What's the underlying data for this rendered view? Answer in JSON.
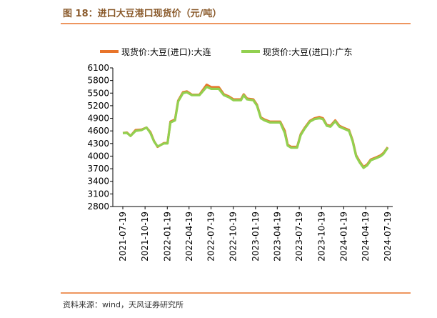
{
  "title": "图 18：进口大豆港口现货价（元/吨）",
  "source": "资料来源：wind，天风证券研究所",
  "chart_data": {
    "type": "line",
    "x": [
      "2021-07-19",
      "2021-08-05",
      "2021-08-20",
      "2021-09-10",
      "2021-10-05",
      "2021-10-25",
      "2021-11-10",
      "2021-11-25",
      "2021-12-10",
      "2022-01-05",
      "2022-01-20",
      "2022-02-01",
      "2022-02-20",
      "2022-03-05",
      "2022-03-25",
      "2022-04-10",
      "2022-05-01",
      "2022-06-01",
      "2022-07-01",
      "2022-07-20",
      "2022-08-20",
      "2022-09-10",
      "2022-10-01",
      "2022-10-20",
      "2022-11-20",
      "2022-12-01",
      "2022-12-15",
      "2023-01-10",
      "2023-01-25",
      "2023-02-10",
      "2023-02-25",
      "2023-03-20",
      "2023-05-01",
      "2023-05-20",
      "2023-06-01",
      "2023-06-15",
      "2023-07-10",
      "2023-07-25",
      "2023-08-10",
      "2023-09-01",
      "2023-09-20",
      "2023-10-10",
      "2023-10-25",
      "2023-11-10",
      "2023-11-25",
      "2023-12-15",
      "2024-01-01",
      "2024-01-20",
      "2024-02-10",
      "2024-02-25",
      "2024-03-10",
      "2024-03-25",
      "2024-04-10",
      "2024-04-25",
      "2024-05-10",
      "2024-06-01",
      "2024-06-20",
      "2024-07-01",
      "2024-07-19"
    ],
    "series": [
      {
        "name": "现货价:大豆(进口):大连",
        "color": "#e8742a",
        "values": [
          4550,
          4560,
          4480,
          4620,
          4630,
          4680,
          4570,
          4360,
          4220,
          4310,
          4310,
          4820,
          4870,
          5320,
          5520,
          5540,
          5460,
          5460,
          5700,
          5640,
          5640,
          5470,
          5420,
          5350,
          5350,
          5470,
          5370,
          5350,
          5220,
          4920,
          4870,
          4820,
          4820,
          4600,
          4270,
          4220,
          4220,
          4520,
          4670,
          4840,
          4900,
          4930,
          4900,
          4740,
          4720,
          4850,
          4720,
          4670,
          4620,
          4370,
          4020,
          3870,
          3740,
          3800,
          3920,
          3970,
          4020,
          4070,
          4210
        ]
      },
      {
        "name": "现货价:大豆(进口):广东",
        "color": "#92d050",
        "values": [
          4550,
          4550,
          4480,
          4600,
          4620,
          4680,
          4550,
          4350,
          4230,
          4300,
          4300,
          4800,
          4850,
          5300,
          5500,
          5520,
          5450,
          5450,
          5650,
          5600,
          5600,
          5450,
          5400,
          5330,
          5330,
          5450,
          5350,
          5330,
          5200,
          4900,
          4850,
          4800,
          4800,
          4550,
          4250,
          4200,
          4200,
          4500,
          4650,
          4820,
          4880,
          4900,
          4880,
          4720,
          4700,
          4830,
          4700,
          4650,
          4600,
          4350,
          4000,
          3850,
          3720,
          3780,
          3900,
          3950,
          4000,
          4050,
          4200
        ]
      }
    ],
    "xlim": [
      "2021-07-19",
      "2024-07-19"
    ],
    "xticks": [
      "2021-07-19",
      "2021-10-19",
      "2022-01-19",
      "2022-04-19",
      "2022-07-19",
      "2022-10-19",
      "2023-01-19",
      "2023-04-19",
      "2023-07-19",
      "2023-10-19",
      "2024-01-19",
      "2024-04-19",
      "2024-07-19"
    ],
    "ylim": [
      2800,
      6100
    ],
    "yticks": [
      2800,
      3100,
      3400,
      3700,
      4000,
      4300,
      4600,
      4900,
      5200,
      5500,
      5800,
      6100
    ],
    "legend": "top"
  }
}
